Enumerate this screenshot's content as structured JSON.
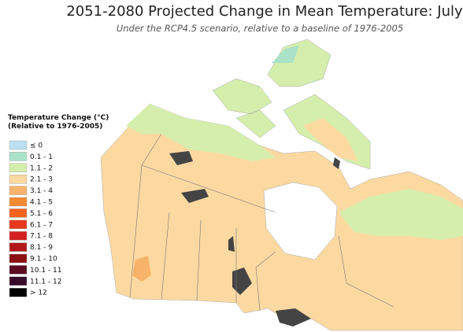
{
  "header": {
    "title": "2051-2080 Projected Change in Mean Temperature: July",
    "subtitle": "Under the RCP4.5 scenario, relative to a baseline of 1976-2005"
  },
  "legend": {
    "title": [
      "Temperature Change (°C)",
      "(Relative to 1976-2005)"
    ],
    "items": [
      {
        "label": "≤ 0",
        "color": "#bcdff2"
      },
      {
        "label": "0.1 - 1",
        "color": "#a9e2c9"
      },
      {
        "label": "1.1 - 2",
        "color": "#d6eeac"
      },
      {
        "label": "2.1 - 3",
        "color": "#fcd9a1"
      },
      {
        "label": "3.1 - 4",
        "color": "#f8b36a"
      },
      {
        "label": "4.1 - 5",
        "color": "#f48a31"
      },
      {
        "label": "5.1 - 6",
        "color": "#f1621f"
      },
      {
        "label": "6.1 - 7",
        "color": "#e7381b"
      },
      {
        "label": "7.1 - 8",
        "color": "#d42121"
      },
      {
        "label": "8.1 - 9",
        "color": "#b31818"
      },
      {
        "label": "9.1 - 10",
        "color": "#8b1111"
      },
      {
        "label": "10.1 - 11",
        "color": "#5b0b22"
      },
      {
        "label": "11.1 - 12",
        "color": "#3a0a2a"
      },
      {
        "label": "> 12",
        "color": "#000000"
      }
    ]
  }
}
